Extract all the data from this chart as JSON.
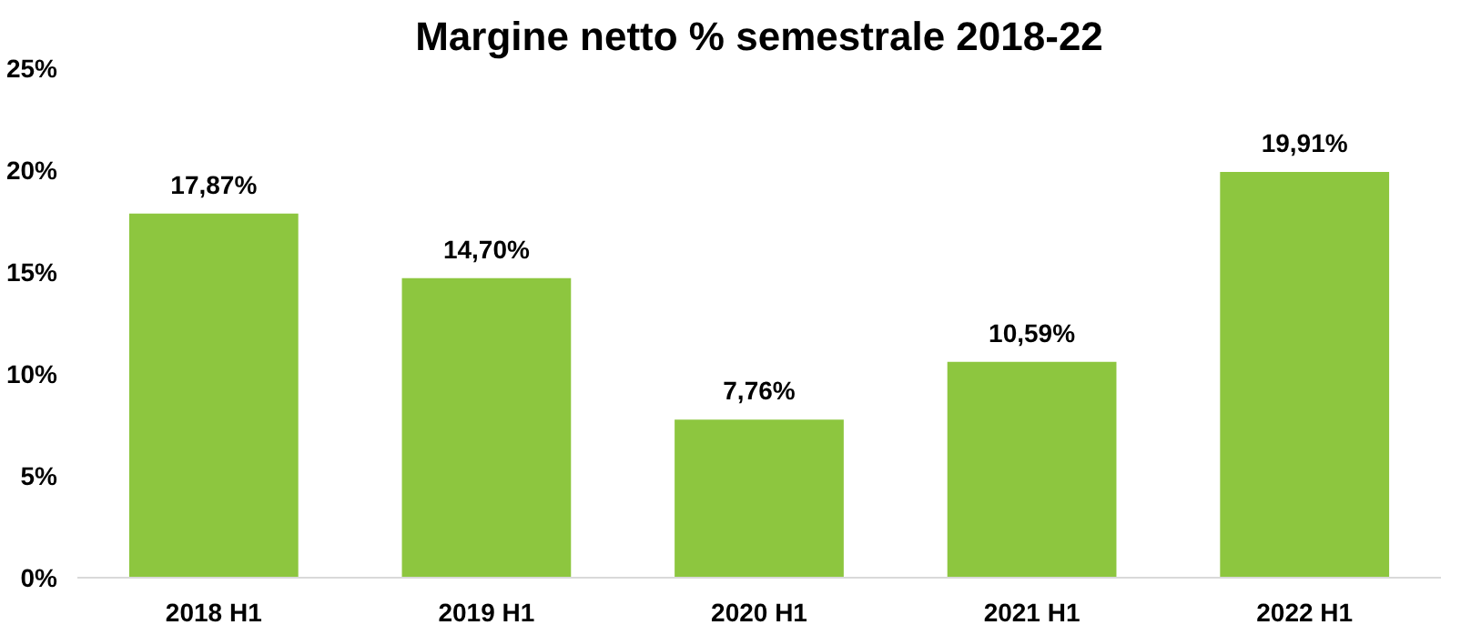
{
  "chart_data": {
    "type": "bar",
    "title": "Margine netto % semestrale 2018-22",
    "categories": [
      "2018 H1",
      "2019 H1",
      "2020 H1",
      "2021 H1",
      "2022 H1"
    ],
    "values": [
      17.87,
      14.7,
      7.76,
      10.59,
      19.91
    ],
    "value_labels": [
      "17,87%",
      "14,70%",
      "7,76%",
      "10,59%",
      "19,91%"
    ],
    "color": "#8dc63f",
    "ylim": [
      0,
      25
    ],
    "yticks": [
      {
        "value": 0,
        "label": "0%"
      },
      {
        "value": 5,
        "label": "5%"
      },
      {
        "value": 10,
        "label": "10%"
      },
      {
        "value": 15,
        "label": "15%"
      },
      {
        "value": 20,
        "label": "20%"
      },
      {
        "value": 25,
        "label": "25%"
      }
    ],
    "grid": false
  }
}
